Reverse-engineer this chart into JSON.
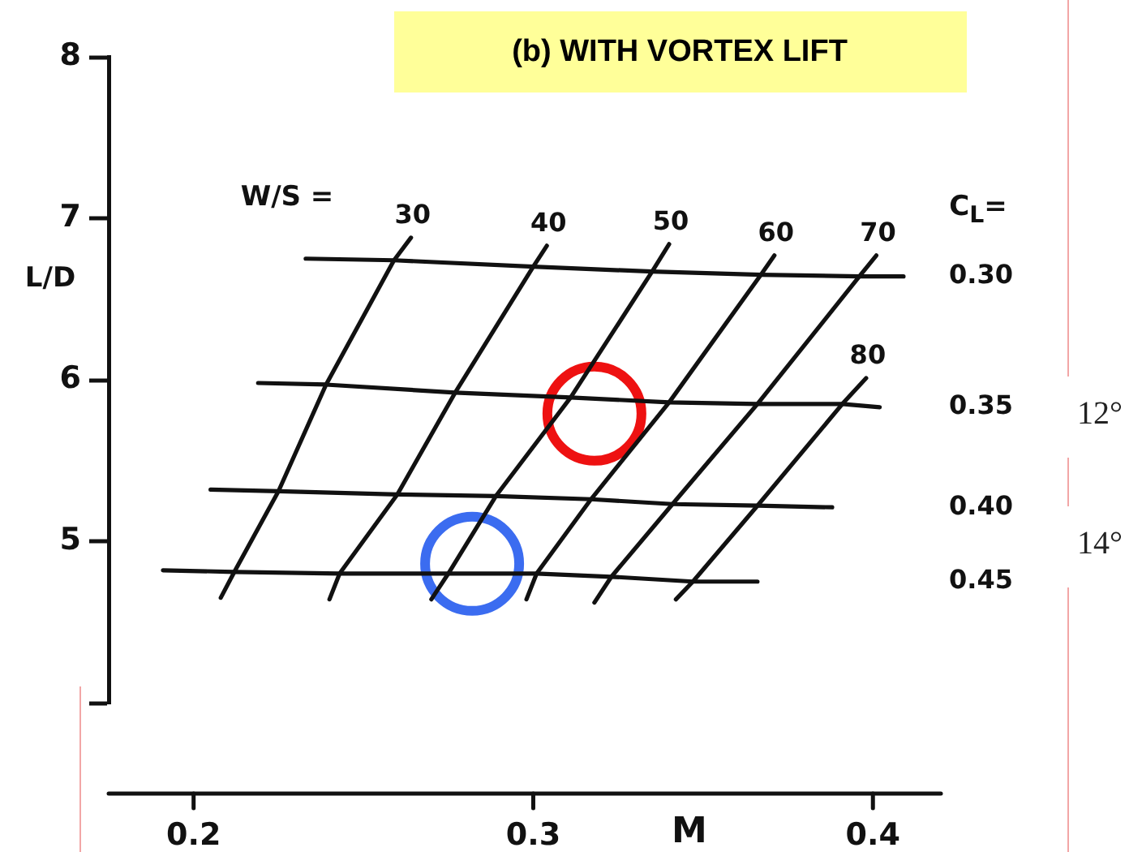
{
  "chart_data": {
    "type": "line",
    "title": "(b) WITH VORTEX LIFT",
    "xlabel": "M",
    "ylabel": "L/D",
    "annotations": [
      "W/S =",
      "C$_{L}$=",
      "12°",
      "14°"
    ],
    "xlim": [
      0.175,
      0.42
    ],
    "xticks": [
      0.2,
      0.3,
      0.4
    ],
    "ylim": [
      4,
      8
    ],
    "yticks": [
      {
        "value": 4,
        "label": null
      },
      5,
      6,
      7,
      8
    ],
    "grid": false,
    "legend": false,
    "line_style": "solid",
    "series": [
      {
        "name": "30",
        "color": "#111111",
        "x": [
          0.208,
          0.212,
          0.225,
          0.239,
          0.259,
          0.264
        ],
        "values": [
          4.65,
          4.81,
          5.31,
          5.97,
          6.74,
          6.88
        ]
      },
      {
        "name": "40",
        "color": "#111111",
        "x": [
          0.24,
          0.243,
          0.26,
          0.277,
          0.3,
          0.304
        ],
        "values": [
          4.64,
          4.8,
          5.29,
          5.92,
          6.7,
          6.83
        ]
      },
      {
        "name": "50",
        "color": "#111111",
        "x": [
          0.27,
          0.275,
          0.289,
          0.311,
          0.335,
          0.34
        ],
        "values": [
          4.64,
          4.8,
          5.28,
          5.89,
          6.67,
          6.84
        ]
      },
      {
        "name": "60",
        "color": "#111111",
        "x": [
          0.298,
          0.301,
          0.317,
          0.34,
          0.367,
          0.371
        ],
        "values": [
          4.64,
          4.8,
          5.26,
          5.86,
          6.65,
          6.77
        ]
      },
      {
        "name": "70",
        "color": "#111111",
        "x": [
          0.318,
          0.323,
          0.341,
          0.366,
          0.396,
          0.401
        ],
        "values": [
          4.62,
          4.78,
          5.23,
          5.85,
          6.64,
          6.77
        ]
      },
      {
        "name": "80",
        "color": "#111111",
        "x": [
          0.342,
          0.347,
          0.366,
          0.391,
          0.398
        ],
        "values": [
          4.64,
          4.75,
          5.22,
          5.85,
          6.01
        ]
      },
      {
        "name": "0.30",
        "color": "#111111",
        "x": [
          0.233,
          0.259,
          0.3,
          0.335,
          0.367,
          0.396,
          0.409
        ],
        "values": [
          6.75,
          6.74,
          6.7,
          6.67,
          6.65,
          6.64,
          6.64
        ]
      },
      {
        "name": "0.35",
        "color": "#111111",
        "x": [
          0.219,
          0.239,
          0.277,
          0.311,
          0.34,
          0.366,
          0.391,
          0.402
        ],
        "values": [
          5.98,
          5.97,
          5.92,
          5.89,
          5.86,
          5.85,
          5.85,
          5.83
        ]
      },
      {
        "name": "0.40",
        "color": "#111111",
        "x": [
          0.205,
          0.225,
          0.26,
          0.289,
          0.317,
          0.341,
          0.366,
          0.388
        ],
        "values": [
          5.32,
          5.31,
          5.29,
          5.28,
          5.26,
          5.23,
          5.22,
          5.21
        ]
      },
      {
        "name": "0.45",
        "color": "#111111",
        "x": [
          0.191,
          0.212,
          0.243,
          0.275,
          0.301,
          0.323,
          0.347,
          0.366
        ],
        "values": [
          4.82,
          4.81,
          4.8,
          4.8,
          4.8,
          4.78,
          4.75,
          4.75
        ]
      },
      {
        "type": "scatter",
        "color": "#ee1111",
        "marker": "circle",
        "x": [
          0.318
        ],
        "values": [
          5.79
        ]
      },
      {
        "type": "scatter",
        "color": "#3b6cf0",
        "marker": "circle",
        "x": [
          0.282
        ],
        "values": [
          4.86
        ]
      }
    ]
  }
}
